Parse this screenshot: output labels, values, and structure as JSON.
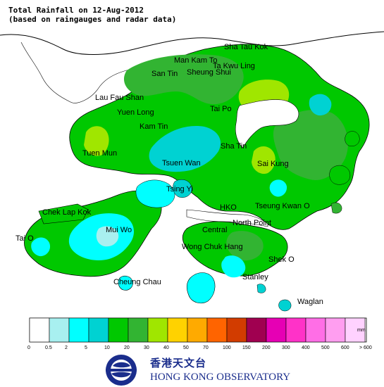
{
  "title": {
    "line1": "Total Rainfall on 12-Aug-2012",
    "line2": "(based on raingauges and radar data)"
  },
  "places": [
    {
      "name": "Sha Tau Kok"
    },
    {
      "name": "Man Kam To"
    },
    {
      "name": "Ta Kwu Ling"
    },
    {
      "name": "San Tin"
    },
    {
      "name": "Sheung Shui"
    },
    {
      "name": "Lau Fau Shan"
    },
    {
      "name": "Yuen Long"
    },
    {
      "name": "Tai Po"
    },
    {
      "name": "Kam Tin"
    },
    {
      "name": "Tuen Mun"
    },
    {
      "name": "Sha Tin"
    },
    {
      "name": "Tsuen Wan"
    },
    {
      "name": "Sai Kung"
    },
    {
      "name": "Tsing Yi"
    },
    {
      "name": "Chek Lap Kok"
    },
    {
      "name": "HKO"
    },
    {
      "name": "Tseung Kwan O"
    },
    {
      "name": "Tai O"
    },
    {
      "name": "Mui Wo"
    },
    {
      "name": "Central"
    },
    {
      "name": "North Point"
    },
    {
      "name": "Wong Chuk Hang"
    },
    {
      "name": "Shek O"
    },
    {
      "name": "Cheung Chau"
    },
    {
      "name": "Stanley"
    },
    {
      "name": "Waglan"
    }
  ],
  "legend": {
    "unit": "mm",
    "colors": [
      "#ffffff",
      "#a8f0f0",
      "#00ffff",
      "#00d2d2",
      "#00c800",
      "#32b432",
      "#a0e600",
      "#ffd200",
      "#ffaa00",
      "#ff6400",
      "#d23c00",
      "#a00050",
      "#e600b4",
      "#ff32c8",
      "#ff6ee6",
      "#ff9ef0",
      "#ffd2ff"
    ],
    "ticks": [
      "0",
      "0.5",
      "2",
      "5",
      "10",
      "20",
      "30",
      "40",
      "50",
      "70",
      "100",
      "150",
      "200",
      "300",
      "400",
      "500",
      "600",
      "> 600"
    ]
  },
  "logo": {
    "chinese": "香港天文台",
    "english": "HONG KONG OBSERVATORY"
  }
}
